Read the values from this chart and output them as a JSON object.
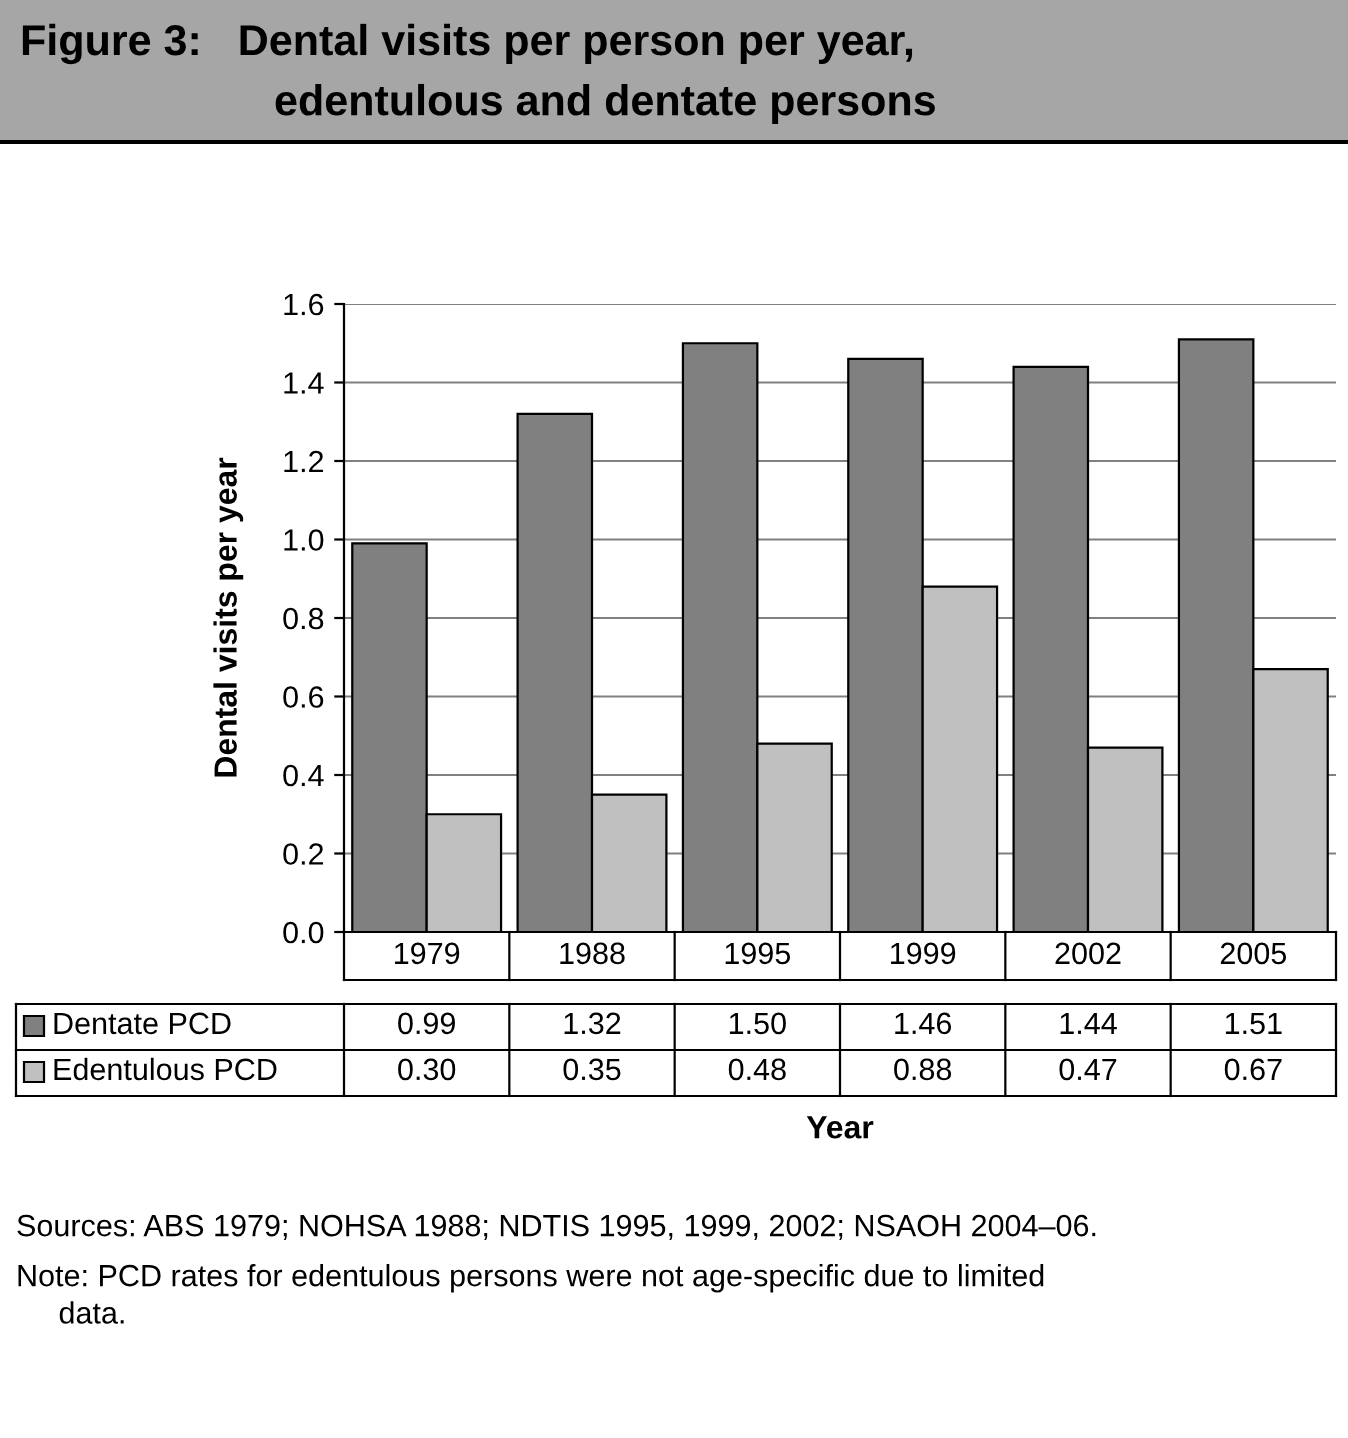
{
  "chart_data": {
    "type": "bar",
    "title": "Figure 3:   Dental visits per person per year,\nedentulous and dentate persons",
    "xlabel": "Year",
    "ylabel": "Dental visits per year",
    "categories": [
      "1979",
      "1988",
      "1995",
      "1999",
      "2002",
      "2005"
    ],
    "series": [
      {
        "name": "Dentate PCD",
        "color": "#808080",
        "values": [
          0.99,
          1.32,
          1.5,
          1.46,
          1.44,
          1.51
        ],
        "value_labels": [
          "0.99",
          "1.32",
          "1.50",
          "1.46",
          "1.44",
          "1.51"
        ]
      },
      {
        "name": "Edentulous PCD",
        "color": "#c0c0c0",
        "values": [
          0.3,
          0.35,
          0.48,
          0.88,
          0.47,
          0.67
        ],
        "value_labels": [
          "0.30",
          "0.35",
          "0.48",
          "0.88",
          "0.47",
          "0.67"
        ]
      }
    ],
    "ylim": [
      0,
      1.6
    ],
    "yticks": [
      {
        "value": 0,
        "label": "0.0"
      },
      {
        "value": 0.2,
        "label": "0.2"
      },
      {
        "value": 0.4,
        "label": "0.4"
      },
      {
        "value": 0.6,
        "label": "0.6"
      },
      {
        "value": 0.8,
        "label": "0.8"
      },
      {
        "value": 1.0,
        "label": "1.0"
      },
      {
        "value": 1.2,
        "label": "1.2"
      },
      {
        "value": 1.4,
        "label": "1.4"
      },
      {
        "value": 1.6,
        "label": "1.6"
      }
    ],
    "grid": "y",
    "legend": "bottom",
    "annotations": [
      "Sources: ABS 1979; NOHSA 1988; NDTIS 1995, 1999, 2002; NSAOH 2004–06.",
      "Note: PCD rates for edentulous persons were not age-specific due to limited\n     data."
    ]
  }
}
